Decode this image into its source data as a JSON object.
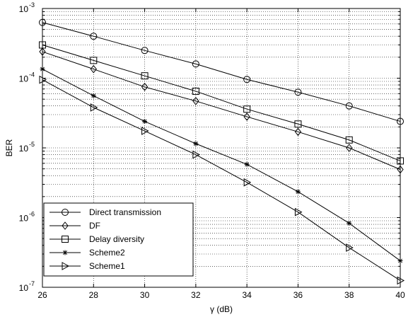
{
  "chart_data": {
    "type": "line",
    "title": "",
    "xlabel": "γ (dB)",
    "ylabel": "BER",
    "xlim": [
      26,
      40
    ],
    "ylim": [
      1e-07,
      0.001
    ],
    "yscale": "log",
    "grid": true,
    "legend_position": "bottom-left",
    "x_ticks": [
      26,
      28,
      30,
      32,
      34,
      36,
      38,
      40
    ],
    "y_tick_labels": [
      {
        "base": "10",
        "exp": "-7",
        "value": 1e-07
      },
      {
        "base": "10",
        "exp": "-6",
        "value": 1e-06
      },
      {
        "base": "10",
        "exp": "-5",
        "value": 1e-05
      },
      {
        "base": "10",
        "exp": "-4",
        "value": 0.0001
      },
      {
        "base": "10",
        "exp": "-3",
        "value": 0.001
      }
    ],
    "x": [
      26,
      28,
      30,
      32,
      34,
      36,
      38,
      40
    ],
    "series": [
      {
        "name": "Direct transmission",
        "marker": "circle",
        "values": [
          0.00063,
          0.0004,
          0.00025,
          0.00016,
          9.6e-05,
          6.3e-05,
          4e-05,
          2.4e-05
        ]
      },
      {
        "name": "DF",
        "marker": "diamond",
        "values": [
          0.00024,
          0.000135,
          7.5e-05,
          4.7e-05,
          2.8e-05,
          1.7e-05,
          1e-05,
          4.9e-06
        ]
      },
      {
        "name": "Delay diversity",
        "marker": "square",
        "values": [
          0.0003,
          0.00018,
          0.000108,
          6.5e-05,
          3.6e-05,
          2.2e-05,
          1.3e-05,
          6.5e-06
        ]
      },
      {
        "name": "Scheme2",
        "marker": "star",
        "values": [
          0.000135,
          5.6e-05,
          2.4e-05,
          1.15e-05,
          5.8e-06,
          2.35e-06,
          8.3e-07,
          2.4e-07
        ]
      },
      {
        "name": "Scheme1",
        "marker": "triangle-right",
        "values": [
          9.5e-05,
          3.8e-05,
          1.75e-05,
          8e-06,
          3.2e-06,
          1.2e-06,
          3.7e-07,
          1.25e-07
        ]
      }
    ]
  }
}
